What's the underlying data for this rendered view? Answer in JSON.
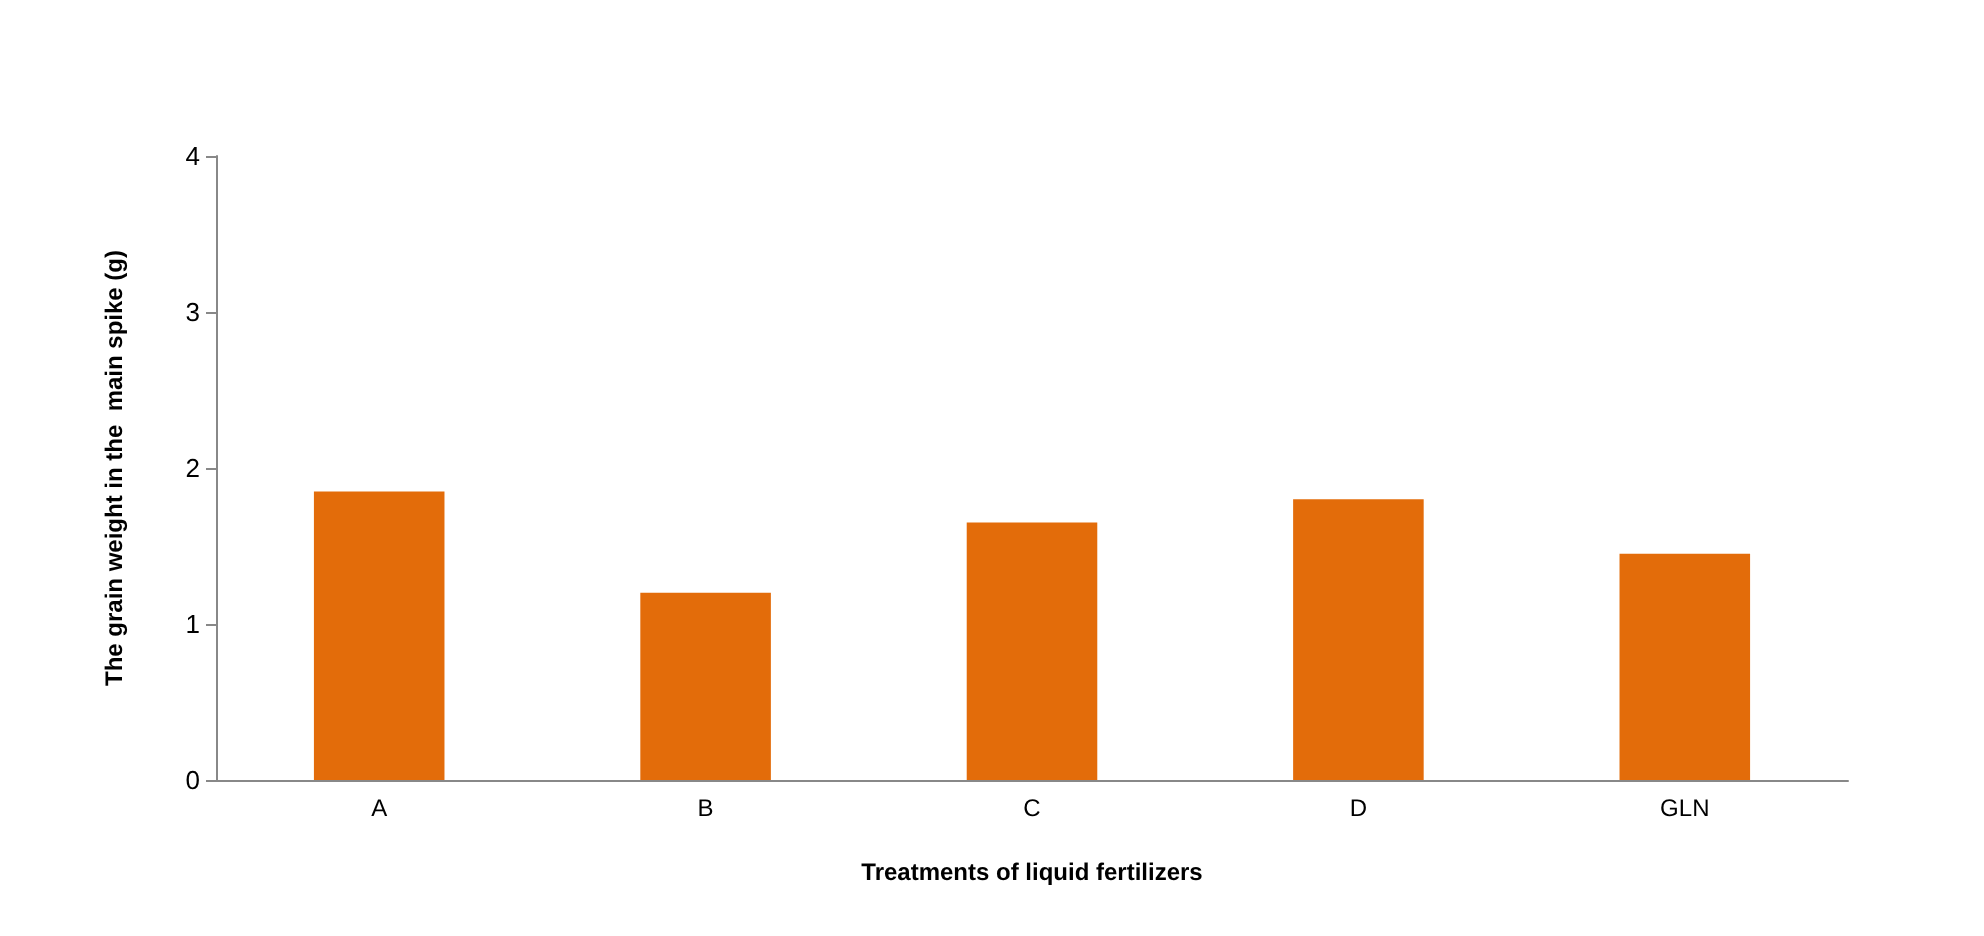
{
  "chart_data": {
    "type": "bar",
    "xlabel": "Treatments of liquid fertilizers",
    "ylabel": "The grain weight in the  main spike (g)",
    "categories": [
      "A",
      "B",
      "C",
      "D",
      "GLN"
    ],
    "values": [
      1.85,
      1.2,
      1.65,
      1.8,
      1.45
    ],
    "color": "#e36c0a",
    "ylim": [
      0,
      4
    ],
    "yticks": [
      0,
      1,
      2,
      3,
      4
    ],
    "grid": false
  }
}
